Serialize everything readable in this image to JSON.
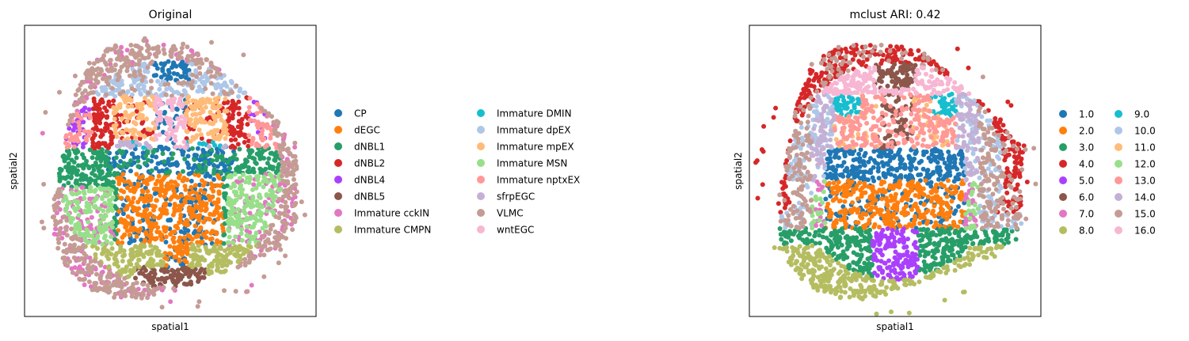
{
  "chart_data": [
    {
      "type": "scatter",
      "title": "Original",
      "xlabel": "spatial1",
      "ylabel": "spatial2",
      "grid": false,
      "legend_position": "right",
      "categories": [
        {
          "name": "CP",
          "color": "#1f77b4"
        },
        {
          "name": "dEGC",
          "color": "#ff7f0e"
        },
        {
          "name": "dNBL1",
          "color": "#279e68"
        },
        {
          "name": "dNBL2",
          "color": "#d62728"
        },
        {
          "name": "dNBL4",
          "color": "#aa40fc"
        },
        {
          "name": "dNBL5",
          "color": "#8c564b"
        },
        {
          "name": "Immature cckIN",
          "color": "#e377c2"
        },
        {
          "name": "Immature CMPN",
          "color": "#b5bd61"
        },
        {
          "name": "Immature DMIN",
          "color": "#17becf"
        },
        {
          "name": "Immature dpEX",
          "color": "#aec7e8"
        },
        {
          "name": "Immature mpEX",
          "color": "#ffbb78"
        },
        {
          "name": "Immature MSN",
          "color": "#98df8a"
        },
        {
          "name": "Immature nptxEX",
          "color": "#ff9896"
        },
        {
          "name": "sfrpEGC",
          "color": "#c5b0d5"
        },
        {
          "name": "VLMC",
          "color": "#c49c94"
        },
        {
          "name": "wntEGC",
          "color": "#f7b6d2"
        }
      ]
    },
    {
      "type": "scatter",
      "title": "mclust ARI: 0.42",
      "xlabel": "spatial1",
      "ylabel": "spatial2",
      "grid": false,
      "legend_position": "right",
      "categories": [
        {
          "name": "1.0",
          "color": "#1f77b4"
        },
        {
          "name": "2.0",
          "color": "#ff7f0e"
        },
        {
          "name": "3.0",
          "color": "#279e68"
        },
        {
          "name": "4.0",
          "color": "#d62728"
        },
        {
          "name": "5.0",
          "color": "#aa40fc"
        },
        {
          "name": "6.0",
          "color": "#8c564b"
        },
        {
          "name": "7.0",
          "color": "#e377c2"
        },
        {
          "name": "8.0",
          "color": "#b5bd61"
        },
        {
          "name": "9.0",
          "color": "#17becf"
        },
        {
          "name": "10.0",
          "color": "#aec7e8"
        },
        {
          "name": "11.0",
          "color": "#ffbb78"
        },
        {
          "name": "12.0",
          "color": "#98df8a"
        },
        {
          "name": "13.0",
          "color": "#ff9896"
        },
        {
          "name": "14.0",
          "color": "#c5b0d5"
        },
        {
          "name": "15.0",
          "color": "#c49c94"
        },
        {
          "name": "16.0",
          "color": "#f7b6d2"
        }
      ]
    }
  ]
}
